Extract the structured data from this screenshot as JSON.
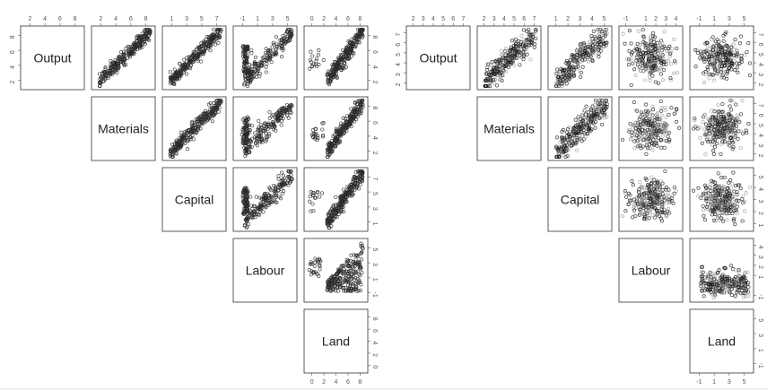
{
  "chart_data": [
    {
      "type": "scatter",
      "matrix_type": "pairs-upper-triangle",
      "variables": [
        "Output",
        "Materials",
        "Capital",
        "Labour",
        "Land"
      ],
      "axis_ticks": [
        {
          "ticks": [
            2,
            4,
            6,
            8
          ],
          "range": [
            1,
            9
          ]
        },
        {
          "ticks": [
            2,
            4,
            6,
            8
          ],
          "range": [
            1,
            9
          ]
        },
        {
          "ticks": [
            1,
            3,
            5,
            7
          ],
          "range": [
            0,
            8
          ]
        },
        {
          "ticks": [
            -1,
            1,
            3,
            5
          ],
          "range": [
            -2,
            6
          ]
        },
        {
          "ticks": [
            0,
            2,
            4,
            6,
            8
          ],
          "range": [
            -1,
            9
          ]
        }
      ],
      "point_color": "#2a2a2a",
      "pairs": [
        {
          "x": "Materials",
          "y": "Output",
          "pattern": "strong-linear"
        },
        {
          "x": "Capital",
          "y": "Output",
          "pattern": "strong-linear"
        },
        {
          "x": "Labour",
          "y": "Output",
          "pattern": "linear-with-cluster"
        },
        {
          "x": "Land",
          "y": "Output",
          "pattern": "linear-with-outliers"
        },
        {
          "x": "Capital",
          "y": "Materials",
          "pattern": "strong-linear"
        },
        {
          "x": "Labour",
          "y": "Materials",
          "pattern": "linear-with-cluster"
        },
        {
          "x": "Land",
          "y": "Materials",
          "pattern": "linear-with-outliers"
        },
        {
          "x": "Labour",
          "y": "Capital",
          "pattern": "linear-with-cluster"
        },
        {
          "x": "Land",
          "y": "Capital",
          "pattern": "linear-with-outliers"
        },
        {
          "x": "Land",
          "y": "Labour",
          "pattern": "wedge"
        }
      ]
    },
    {
      "type": "scatter",
      "matrix_type": "pairs-upper-triangle",
      "variables": [
        "Output",
        "Materials",
        "Capital",
        "Labour",
        "Land"
      ],
      "axis_ticks": [
        {
          "ticks": [
            2,
            3,
            4,
            5,
            6,
            7
          ],
          "range": [
            1.5,
            7.5
          ]
        },
        {
          "ticks": [
            2,
            3,
            4,
            5,
            6,
            7
          ],
          "range": [
            1.5,
            7.5
          ]
        },
        {
          "ticks": [
            1,
            2,
            3,
            4,
            5
          ],
          "range": [
            0.5,
            5.5
          ]
        },
        {
          "ticks": [
            -1,
            1,
            2,
            3,
            4
          ],
          "range": [
            -1.5,
            4.5
          ]
        },
        {
          "ticks": [
            -1,
            1,
            3,
            5
          ],
          "range": [
            -2,
            6
          ]
        }
      ],
      "point_color": "#1e1e1e",
      "overlay_color": "#9a9a9a",
      "pairs": [
        {
          "x": "Materials",
          "y": "Output",
          "pattern": "moderate-linear"
        },
        {
          "x": "Capital",
          "y": "Output",
          "pattern": "moderate-linear"
        },
        {
          "x": "Labour",
          "y": "Output",
          "pattern": "diffuse"
        },
        {
          "x": "Land",
          "y": "Output",
          "pattern": "diffuse"
        },
        {
          "x": "Capital",
          "y": "Materials",
          "pattern": "moderate-linear"
        },
        {
          "x": "Labour",
          "y": "Materials",
          "pattern": "diffuse"
        },
        {
          "x": "Land",
          "y": "Materials",
          "pattern": "diffuse"
        },
        {
          "x": "Labour",
          "y": "Capital",
          "pattern": "diffuse"
        },
        {
          "x": "Land",
          "y": "Capital",
          "pattern": "diffuse"
        },
        {
          "x": "Land",
          "y": "Labour",
          "pattern": "flat-band"
        }
      ]
    }
  ]
}
